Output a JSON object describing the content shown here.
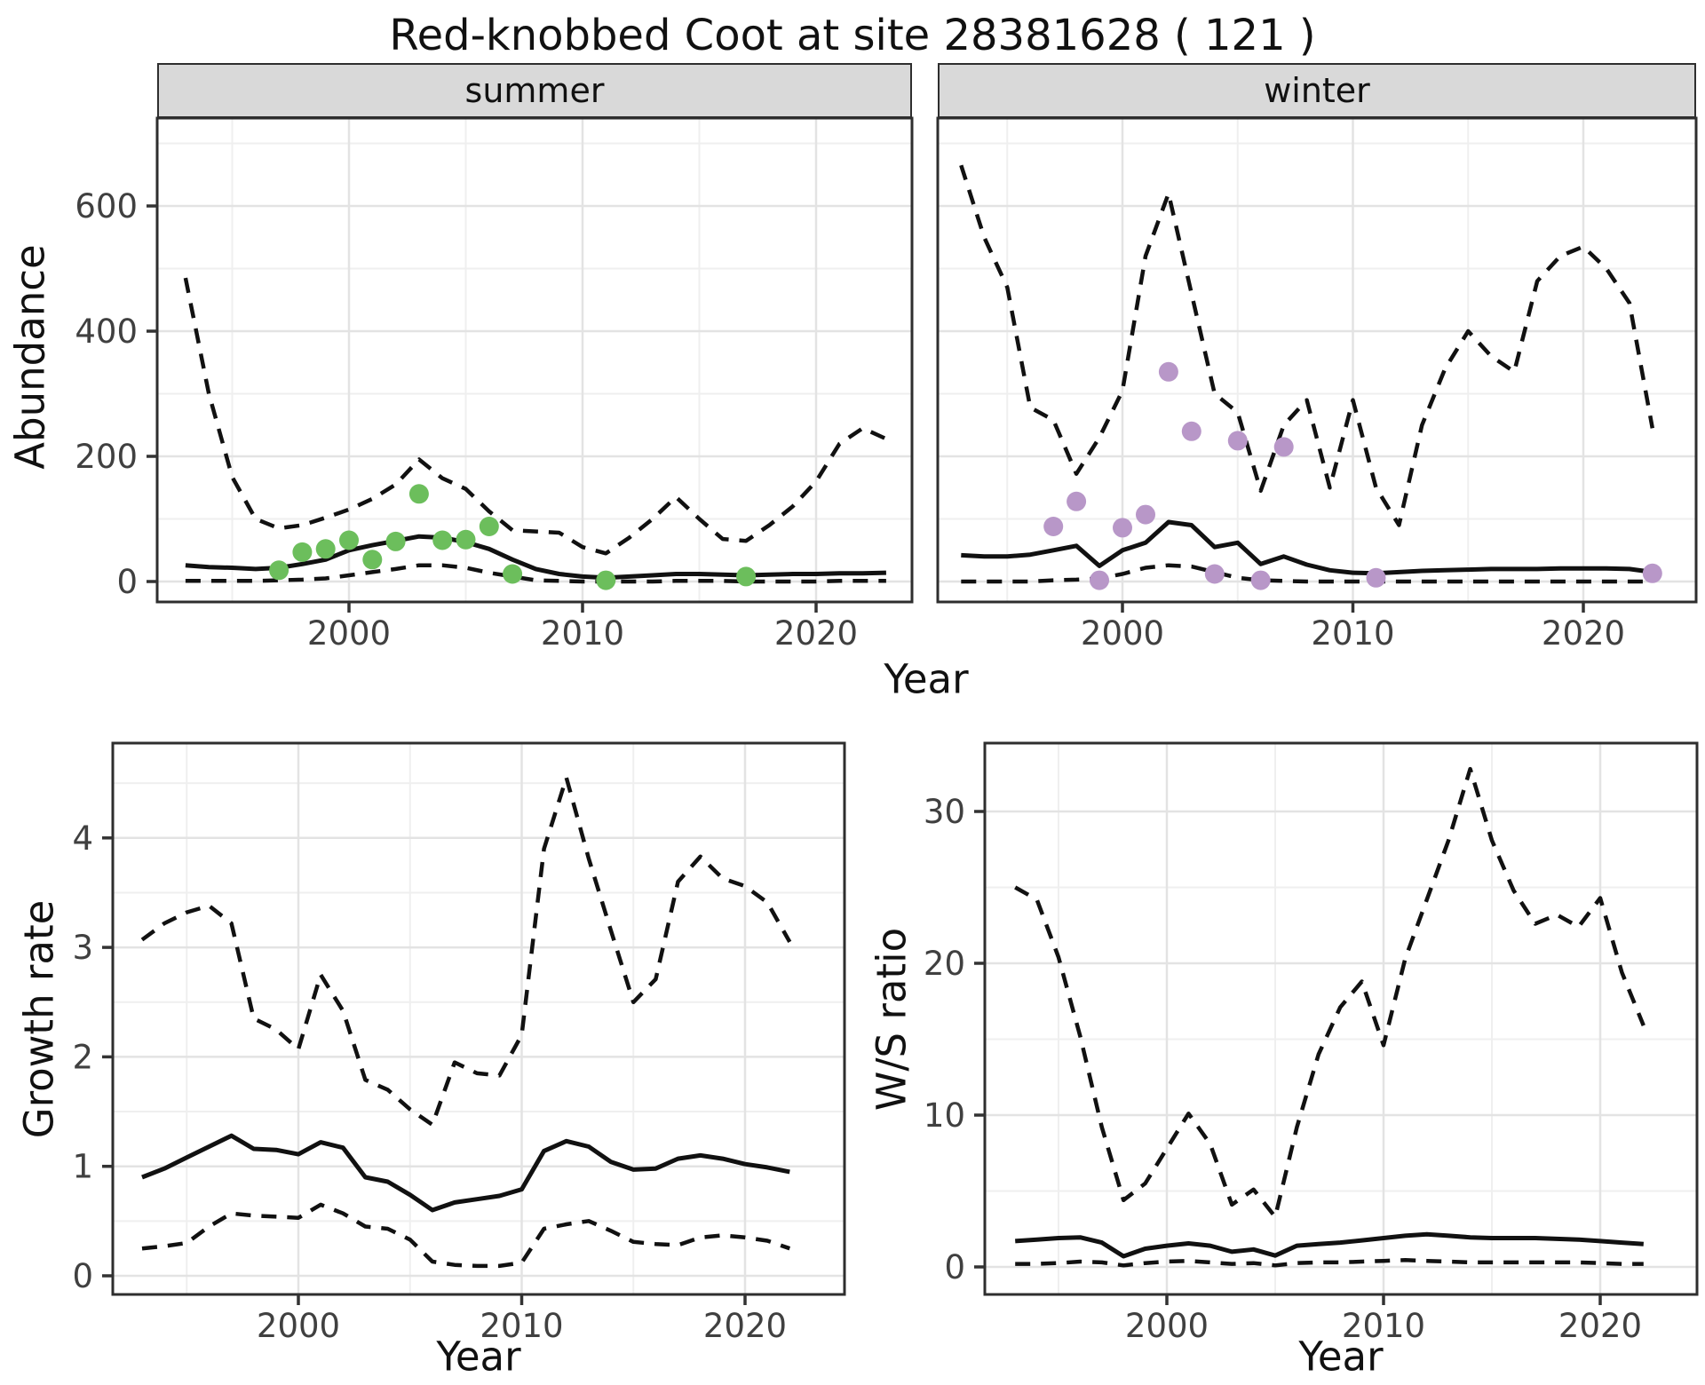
{
  "title": "Red-knobbed Coot at site 28381628 ( 121 )",
  "facets": [
    "summer",
    "winter"
  ],
  "axis_labels": {
    "abundance": "Abundance",
    "year": "Year",
    "growth": "Growth rate",
    "ws": "W/S ratio"
  },
  "colors": {
    "summer_points": "#6cbe5c",
    "winter_points": "#b897c8",
    "line": "#111111",
    "grid_major": "#e3e3e3",
    "grid_minor": "#efefef",
    "strip_bg": "#d9d9d9",
    "panel_border": "#2e2e2e",
    "tick_label": "#404040",
    "tick_mark": "#333333"
  },
  "chart_data": [
    {
      "type": "line",
      "facet": "summer",
      "xlabel": "Year",
      "ylabel": "Abundance",
      "x_ticks": [
        2000,
        2010,
        2020
      ],
      "y_ticks": [
        0,
        200,
        400,
        600
      ],
      "xlim": [
        1991.7,
        2024.3
      ],
      "ylim": [
        -33,
        740
      ],
      "grid": true,
      "legend": "none",
      "x": [
        1993,
        1994,
        1995,
        1996,
        1997,
        1998,
        1999,
        2000,
        2001,
        2002,
        2003,
        2004,
        2005,
        2006,
        2007,
        2008,
        2009,
        2010,
        2011,
        2012,
        2013,
        2014,
        2015,
        2016,
        2017,
        2018,
        2019,
        2020,
        2021,
        2022,
        2023
      ],
      "series": [
        {
          "name": "median",
          "style": "solid",
          "values": [
            26,
            23,
            22,
            20,
            22,
            28,
            35,
            50,
            58,
            65,
            72,
            70,
            63,
            52,
            35,
            20,
            12,
            8,
            6,
            8,
            10,
            12,
            12,
            11,
            10,
            11,
            12,
            12,
            13,
            13,
            14
          ]
        },
        {
          "name": "lower_ci",
          "style": "dashed",
          "values": [
            1,
            1,
            1,
            1,
            2,
            3,
            5,
            10,
            15,
            20,
            26,
            26,
            22,
            14,
            8,
            2,
            1,
            0,
            0,
            0,
            0,
            1,
            1,
            1,
            0,
            0,
            0,
            0,
            1,
            1,
            1
          ]
        },
        {
          "name": "upper_ci",
          "style": "dashed",
          "values": [
            485,
            300,
            167,
            100,
            85,
            90,
            102,
            115,
            132,
            155,
            195,
            165,
            148,
            112,
            82,
            80,
            78,
            55,
            45,
            70,
            100,
            135,
            100,
            68,
            65,
            90,
            120,
            160,
            220,
            245,
            228
          ]
        }
      ],
      "points": {
        "name": "observed-counts-summer",
        "years": [
          1997,
          1998,
          1999,
          2000,
          2001,
          2002,
          2003,
          2004,
          2005,
          2006,
          2007,
          2011,
          2017
        ],
        "values": [
          18,
          47,
          52,
          66,
          35,
          64,
          140,
          66,
          67,
          88,
          12,
          2,
          8
        ]
      }
    },
    {
      "type": "line",
      "facet": "winter",
      "xlabel": "Year",
      "ylabel": "Abundance",
      "x_ticks": [
        2000,
        2010,
        2020
      ],
      "y_ticks": [
        0,
        200,
        400,
        600
      ],
      "xlim": [
        1992.0,
        2024.9
      ],
      "ylim": [
        -33,
        740
      ],
      "grid": true,
      "legend": "none",
      "x": [
        1993,
        1994,
        1995,
        1996,
        1997,
        1998,
        1999,
        2000,
        2001,
        2002,
        2003,
        2004,
        2005,
        2006,
        2007,
        2008,
        2009,
        2010,
        2011,
        2012,
        2013,
        2014,
        2015,
        2016,
        2017,
        2018,
        2019,
        2020,
        2021,
        2022,
        2023
      ],
      "series": [
        {
          "name": "median",
          "style": "solid",
          "values": [
            42,
            40,
            40,
            43,
            50,
            57,
            25,
            50,
            62,
            95,
            90,
            55,
            62,
            28,
            40,
            27,
            18,
            14,
            13,
            15,
            17,
            18,
            19,
            20,
            20,
            20,
            21,
            21,
            21,
            20,
            15
          ]
        },
        {
          "name": "lower_ci",
          "style": "dashed",
          "values": [
            0,
            0,
            0,
            0,
            2,
            3,
            5,
            12,
            22,
            26,
            24,
            15,
            6,
            2,
            1,
            0,
            0,
            0,
            0,
            0,
            0,
            0,
            0,
            0,
            0,
            0,
            0,
            0,
            0,
            0,
            0
          ]
        },
        {
          "name": "upper_ci",
          "style": "dashed",
          "values": [
            665,
            550,
            470,
            278,
            258,
            172,
            230,
            305,
            520,
            620,
            460,
            300,
            270,
            145,
            250,
            290,
            150,
            290,
            150,
            90,
            250,
            340,
            400,
            360,
            335,
            480,
            520,
            535,
            500,
            445,
            245
          ]
        }
      ],
      "points": {
        "name": "observed-counts-winter",
        "years": [
          1997,
          1998,
          1999,
          2000,
          2001,
          2002,
          2003,
          2004,
          2005,
          2006,
          2007,
          2011,
          2023
        ],
        "values": [
          88,
          128,
          2,
          86,
          107,
          335,
          240,
          12,
          225,
          2,
          215,
          6,
          13
        ]
      }
    },
    {
      "type": "line",
      "title": "Growth rate",
      "xlabel": "Year",
      "ylabel": "Growth rate",
      "x_ticks": [
        2000,
        2010,
        2020
      ],
      "y_ticks": [
        0,
        1,
        2,
        3,
        4
      ],
      "xlim": [
        1991.7,
        2024.5
      ],
      "ylim": [
        -0.17,
        4.87
      ],
      "grid": true,
      "legend": "none",
      "x": [
        1993,
        1994,
        1995,
        1996,
        1997,
        1998,
        1999,
        2000,
        2001,
        2002,
        2003,
        2004,
        2005,
        2006,
        2007,
        2008,
        2009,
        2010,
        2011,
        2012,
        2013,
        2014,
        2015,
        2016,
        2017,
        2018,
        2019,
        2020,
        2021,
        2022
      ],
      "series": [
        {
          "name": "median",
          "style": "solid",
          "values": [
            0.9,
            0.98,
            1.08,
            1.18,
            1.28,
            1.16,
            1.15,
            1.11,
            1.22,
            1.17,
            0.9,
            0.86,
            0.74,
            0.6,
            0.67,
            0.7,
            0.73,
            0.79,
            1.14,
            1.23,
            1.18,
            1.04,
            0.97,
            0.98,
            1.07,
            1.1,
            1.07,
            1.02,
            0.99,
            0.95
          ]
        },
        {
          "name": "lower_ci",
          "style": "dashed",
          "values": [
            0.25,
            0.27,
            0.3,
            0.45,
            0.57,
            0.55,
            0.54,
            0.53,
            0.65,
            0.57,
            0.45,
            0.43,
            0.33,
            0.13,
            0.1,
            0.09,
            0.09,
            0.12,
            0.43,
            0.47,
            0.5,
            0.41,
            0.31,
            0.29,
            0.28,
            0.35,
            0.37,
            0.35,
            0.32,
            0.25
          ]
        },
        {
          "name": "upper_ci",
          "style": "dashed",
          "values": [
            3.07,
            3.22,
            3.32,
            3.38,
            3.22,
            2.35,
            2.25,
            2.07,
            2.75,
            2.42,
            1.79,
            1.7,
            1.52,
            1.38,
            1.95,
            1.85,
            1.83,
            2.2,
            3.9,
            4.55,
            3.81,
            3.15,
            2.5,
            2.71,
            3.6,
            3.83,
            3.63,
            3.56,
            3.41,
            3.05
          ]
        }
      ]
    },
    {
      "type": "line",
      "title": "W/S ratio",
      "xlabel": "Year",
      "ylabel": "W/S ratio",
      "x_ticks": [
        2000,
        2010,
        2020
      ],
      "y_ticks": [
        0,
        10,
        20,
        30
      ],
      "xlim": [
        1991.6,
        2024.5
      ],
      "ylim": [
        -1.8,
        34.5
      ],
      "grid": true,
      "legend": "none",
      "x": [
        1993,
        1994,
        1995,
        1996,
        1997,
        1998,
        1999,
        2000,
        2001,
        2002,
        2003,
        2004,
        2005,
        2006,
        2007,
        2008,
        2009,
        2010,
        2011,
        2012,
        2013,
        2014,
        2015,
        2016,
        2017,
        2018,
        2019,
        2020,
        2021,
        2022
      ],
      "series": [
        {
          "name": "median",
          "style": "solid",
          "values": [
            1.7,
            1.8,
            1.9,
            1.95,
            1.6,
            0.7,
            1.2,
            1.4,
            1.55,
            1.4,
            1.0,
            1.15,
            0.75,
            1.4,
            1.5,
            1.6,
            1.75,
            1.9,
            2.05,
            2.15,
            2.05,
            1.95,
            1.9,
            1.9,
            1.9,
            1.85,
            1.8,
            1.7,
            1.6,
            1.5
          ]
        },
        {
          "name": "lower_ci",
          "style": "dashed",
          "values": [
            0.2,
            0.2,
            0.25,
            0.35,
            0.3,
            0.1,
            0.25,
            0.35,
            0.4,
            0.3,
            0.2,
            0.25,
            0.1,
            0.25,
            0.3,
            0.3,
            0.35,
            0.4,
            0.45,
            0.4,
            0.35,
            0.3,
            0.3,
            0.3,
            0.3,
            0.3,
            0.3,
            0.25,
            0.2,
            0.2
          ]
        },
        {
          "name": "upper_ci",
          "style": "dashed",
          "values": [
            25.0,
            24.2,
            20.4,
            15.2,
            9.2,
            4.4,
            5.5,
            7.8,
            10.1,
            8.1,
            4.1,
            5.1,
            3.3,
            9.2,
            14.0,
            17.1,
            18.8,
            14.6,
            20.3,
            24.2,
            28.1,
            32.8,
            28.1,
            24.8,
            22.6,
            23.2,
            22.4,
            24.3,
            19.4,
            15.9
          ]
        }
      ]
    }
  ]
}
